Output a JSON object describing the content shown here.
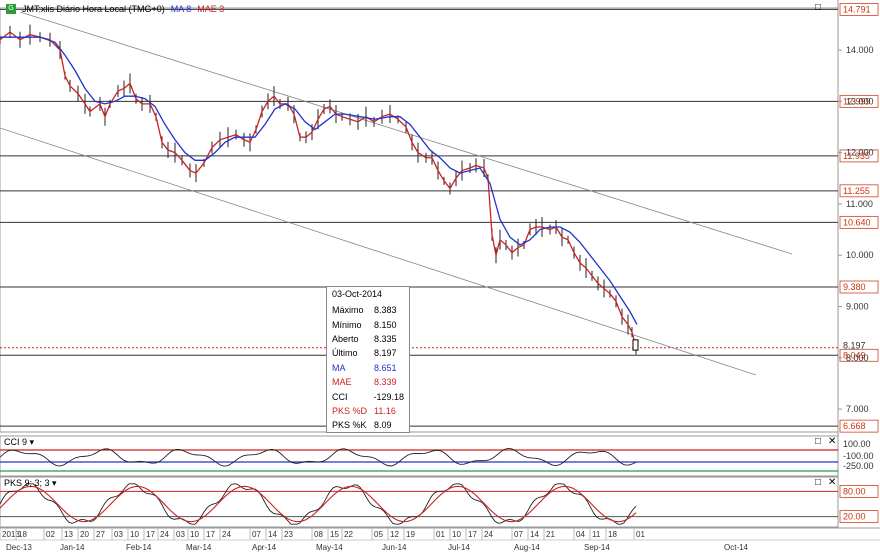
{
  "header": {
    "title": "JMT:xlis Diário Hora Local (TMG+0)",
    "ma_label": "MA 8",
    "mae_label": "MAE 3"
  },
  "colors": {
    "ma": "#2233cc",
    "mae": "#cc2222",
    "price": "#000000",
    "last_line": "#cc2222"
  },
  "tooltip": {
    "date": "03-Oct-2014",
    "rows": [
      {
        "label": "Máximo",
        "value": "8.383",
        "color": ""
      },
      {
        "label": "Mínimo",
        "value": "8.150",
        "color": ""
      },
      {
        "label": "Aberto",
        "value": "8.335",
        "color": ""
      },
      {
        "label": "Último",
        "value": "8.197",
        "color": ""
      },
      {
        "label": "MA",
        "value": "8.651",
        "color": "blue"
      },
      {
        "label": "MAE",
        "value": "8.339",
        "color": "red"
      },
      {
        "label": "CCI",
        "value": "-129.18",
        "color": ""
      },
      {
        "label": "PKS %D",
        "value": "11.16",
        "color": "red"
      },
      {
        "label": "PKS %K",
        "value": "8.09",
        "color": ""
      }
    ]
  },
  "cci_panel": {
    "label": "CCI 9",
    "y_labels": [
      "100.00",
      "-100.00",
      "-250.00"
    ]
  },
  "pks_panel": {
    "label": "PKS 9; 3; 3",
    "y_labels": [
      "80.00",
      "20.00"
    ]
  },
  "chart_data": {
    "type": "line",
    "ylim": [
      6.5,
      14.8
    ],
    "y_ticks": [
      "14.000",
      "13.000",
      "12.000",
      "11.000",
      "10.000",
      "9.000",
      "8.000",
      "7.000"
    ],
    "h_levels": [
      {
        "value": 14.791,
        "label": "14.791"
      },
      {
        "value": 12.999,
        "label": "12.999"
      },
      {
        "value": 11.935,
        "label": "11.935"
      },
      {
        "value": 11.255,
        "label": "11.255"
      },
      {
        "value": 10.64,
        "label": "10.640"
      },
      {
        "value": 9.38,
        "label": "9.380"
      },
      {
        "value": 8.049,
        "label": "8.049"
      },
      {
        "value": 6.668,
        "label": "6.668"
      }
    ],
    "last_price": {
      "value": 8.197,
      "label": "8.197"
    },
    "price": [
      [
        0,
        14.2
      ],
      [
        10,
        14.35
      ],
      [
        20,
        14.2
      ],
      [
        30,
        14.3
      ],
      [
        40,
        14.25
      ],
      [
        50,
        14.2
      ],
      [
        60,
        14.0
      ],
      [
        65,
        13.5
      ],
      [
        70,
        13.3
      ],
      [
        78,
        13.15
      ],
      [
        85,
        12.95
      ],
      [
        90,
        12.8
      ],
      [
        100,
        12.95
      ],
      [
        105,
        12.7
      ],
      [
        110,
        12.95
      ],
      [
        118,
        13.2
      ],
      [
        124,
        13.25
      ],
      [
        130,
        13.35
      ],
      [
        136,
        13.05
      ],
      [
        142,
        12.95
      ],
      [
        150,
        12.95
      ],
      [
        156,
        12.7
      ],
      [
        162,
        12.2
      ],
      [
        168,
        12.05
      ],
      [
        175,
        12.0
      ],
      [
        182,
        11.85
      ],
      [
        190,
        11.65
      ],
      [
        196,
        11.6
      ],
      [
        204,
        11.8
      ],
      [
        212,
        12.1
      ],
      [
        220,
        12.25
      ],
      [
        228,
        12.3
      ],
      [
        236,
        12.35
      ],
      [
        244,
        12.25
      ],
      [
        250,
        12.2
      ],
      [
        256,
        12.45
      ],
      [
        262,
        12.8
      ],
      [
        268,
        13.0
      ],
      [
        274,
        13.1
      ],
      [
        280,
        12.95
      ],
      [
        288,
        12.95
      ],
      [
        294,
        12.75
      ],
      [
        300,
        12.3
      ],
      [
        306,
        12.3
      ],
      [
        312,
        12.4
      ],
      [
        318,
        12.65
      ],
      [
        324,
        12.85
      ],
      [
        330,
        12.9
      ],
      [
        336,
        12.75
      ],
      [
        342,
        12.7
      ],
      [
        350,
        12.65
      ],
      [
        358,
        12.6
      ],
      [
        366,
        12.7
      ],
      [
        374,
        12.6
      ],
      [
        382,
        12.7
      ],
      [
        390,
        12.75
      ],
      [
        398,
        12.65
      ],
      [
        406,
        12.5
      ],
      [
        412,
        12.2
      ],
      [
        418,
        12.0
      ],
      [
        426,
        11.9
      ],
      [
        432,
        11.9
      ],
      [
        438,
        11.65
      ],
      [
        444,
        11.45
      ],
      [
        450,
        11.3
      ],
      [
        456,
        11.5
      ],
      [
        462,
        11.65
      ],
      [
        470,
        11.7
      ],
      [
        476,
        11.75
      ],
      [
        484,
        11.7
      ],
      [
        488,
        11.5
      ],
      [
        492,
        10.4
      ],
      [
        496,
        10.0
      ],
      [
        500,
        10.3
      ],
      [
        506,
        10.2
      ],
      [
        512,
        10.05
      ],
      [
        518,
        10.15
      ],
      [
        524,
        10.2
      ],
      [
        530,
        10.5
      ],
      [
        536,
        10.55
      ],
      [
        542,
        10.55
      ],
      [
        550,
        10.5
      ],
      [
        556,
        10.55
      ],
      [
        562,
        10.35
      ],
      [
        568,
        10.3
      ],
      [
        574,
        10.05
      ],
      [
        580,
        9.85
      ],
      [
        586,
        9.75
      ],
      [
        592,
        9.6
      ],
      [
        598,
        9.45
      ],
      [
        604,
        9.35
      ],
      [
        610,
        9.25
      ],
      [
        616,
        9.1
      ],
      [
        622,
        8.8
      ],
      [
        628,
        8.65
      ],
      [
        632,
        8.5
      ],
      [
        636,
        8.2
      ]
    ],
    "ma8": [
      [
        0,
        14.25
      ],
      [
        20,
        14.25
      ],
      [
        40,
        14.25
      ],
      [
        55,
        14.15
      ],
      [
        65,
        13.9
      ],
      [
        75,
        13.6
      ],
      [
        85,
        13.25
      ],
      [
        95,
        13.0
      ],
      [
        105,
        12.95
      ],
      [
        115,
        13.0
      ],
      [
        125,
        13.1
      ],
      [
        135,
        13.1
      ],
      [
        145,
        13.05
      ],
      [
        155,
        12.9
      ],
      [
        165,
        12.55
      ],
      [
        175,
        12.25
      ],
      [
        185,
        12.0
      ],
      [
        195,
        11.85
      ],
      [
        205,
        11.85
      ],
      [
        215,
        12.0
      ],
      [
        225,
        12.2
      ],
      [
        235,
        12.3
      ],
      [
        245,
        12.3
      ],
      [
        255,
        12.3
      ],
      [
        265,
        12.55
      ],
      [
        275,
        12.85
      ],
      [
        285,
        12.95
      ],
      [
        295,
        12.85
      ],
      [
        305,
        12.6
      ],
      [
        315,
        12.45
      ],
      [
        325,
        12.6
      ],
      [
        335,
        12.75
      ],
      [
        345,
        12.75
      ],
      [
        360,
        12.7
      ],
      [
        375,
        12.65
      ],
      [
        390,
        12.7
      ],
      [
        400,
        12.7
      ],
      [
        410,
        12.55
      ],
      [
        420,
        12.3
      ],
      [
        430,
        12.05
      ],
      [
        440,
        11.9
      ],
      [
        450,
        11.7
      ],
      [
        460,
        11.6
      ],
      [
        470,
        11.65
      ],
      [
        480,
        11.7
      ],
      [
        490,
        11.4
      ],
      [
        500,
        10.7
      ],
      [
        510,
        10.35
      ],
      [
        520,
        10.2
      ],
      [
        530,
        10.3
      ],
      [
        540,
        10.5
      ],
      [
        550,
        10.55
      ],
      [
        560,
        10.55
      ],
      [
        570,
        10.45
      ],
      [
        580,
        10.25
      ],
      [
        590,
        10.0
      ],
      [
        600,
        9.75
      ],
      [
        610,
        9.5
      ],
      [
        620,
        9.2
      ],
      [
        630,
        8.9
      ],
      [
        637,
        8.65
      ]
    ],
    "x_tick_labels": [
      {
        "x": 2,
        "label": "2013"
      },
      {
        "x": 18,
        "label": "18"
      },
      {
        "x": 46,
        "label": "02"
      },
      {
        "x": 64,
        "label": "13"
      },
      {
        "x": 80,
        "label": "20"
      },
      {
        "x": 96,
        "label": "27"
      },
      {
        "x": 114,
        "label": "03"
      },
      {
        "x": 130,
        "label": "10"
      },
      {
        "x": 146,
        "label": "17"
      },
      {
        "x": 160,
        "label": "24"
      },
      {
        "x": 176,
        "label": "03"
      },
      {
        "x": 190,
        "label": "10"
      },
      {
        "x": 206,
        "label": "17"
      },
      {
        "x": 222,
        "label": "24"
      },
      {
        "x": 252,
        "label": "07"
      },
      {
        "x": 268,
        "label": "14"
      },
      {
        "x": 284,
        "label": "23"
      },
      {
        "x": 314,
        "label": "08"
      },
      {
        "x": 330,
        "label": "15"
      },
      {
        "x": 344,
        "label": "22"
      },
      {
        "x": 374,
        "label": "05"
      },
      {
        "x": 390,
        "label": "12"
      },
      {
        "x": 406,
        "label": "19"
      },
      {
        "x": 436,
        "label": "01"
      },
      {
        "x": 452,
        "label": "10"
      },
      {
        "x": 468,
        "label": "17"
      },
      {
        "x": 484,
        "label": "24"
      },
      {
        "x": 514,
        "label": "07"
      },
      {
        "x": 530,
        "label": "14"
      },
      {
        "x": 546,
        "label": "21"
      },
      {
        "x": 576,
        "label": "04"
      },
      {
        "x": 592,
        "label": "11"
      },
      {
        "x": 608,
        "label": "18"
      },
      {
        "x": 636,
        "label": "01"
      }
    ],
    "month_labels": [
      {
        "x": 18,
        "label": "Dec-13"
      },
      {
        "x": 72,
        "label": "Jan-14"
      },
      {
        "x": 138,
        "label": "Feb-14"
      },
      {
        "x": 198,
        "label": "Mar-14"
      },
      {
        "x": 264,
        "label": "Apr-14"
      },
      {
        "x": 328,
        "label": "May-14"
      },
      {
        "x": 394,
        "label": "Jun-14"
      },
      {
        "x": 460,
        "label": "Jul-14"
      },
      {
        "x": 526,
        "label": "Aug-14"
      },
      {
        "x": 596,
        "label": "Sep-14"
      },
      {
        "x": 736,
        "label": "Oct-14"
      }
    ]
  }
}
